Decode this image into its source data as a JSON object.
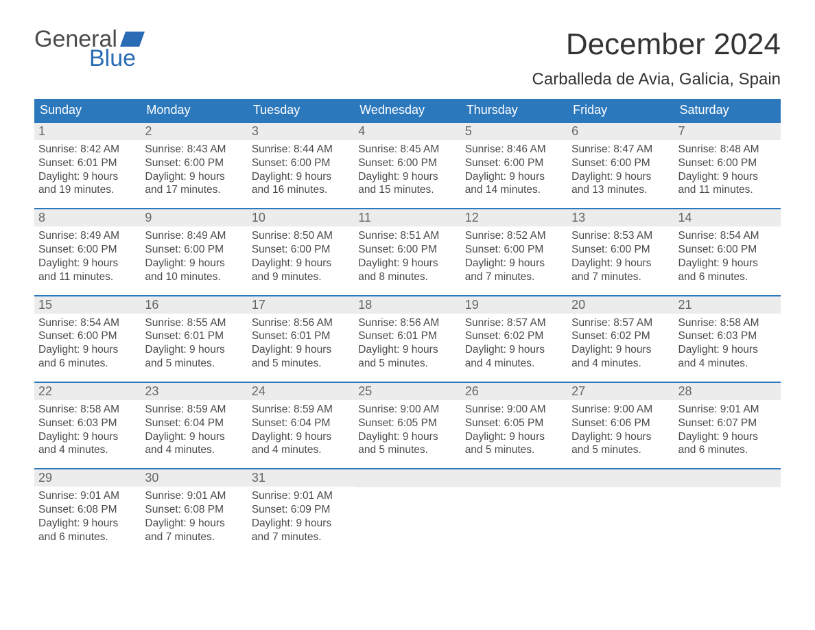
{
  "brand": {
    "part1": "General",
    "part2": "Blue",
    "color1": "#4a4a4a",
    "color2": "#2a6bb5"
  },
  "title": "December 2024",
  "location": "Carballeda de Avia, Galicia, Spain",
  "colors": {
    "header_bg": "#2c78bd",
    "header_text": "#ffffff",
    "daynum_bg": "#ececec",
    "daynum_text": "#666666",
    "body_text": "#4a4a4a",
    "page_bg": "#ffffff",
    "row_border": "#2c78bd"
  },
  "fonts": {
    "title_pt": 44,
    "location_pt": 24,
    "dayheader_pt": 18,
    "daynum_pt": 18,
    "body_pt": 15.5
  },
  "dayHeaders": [
    "Sunday",
    "Monday",
    "Tuesday",
    "Wednesday",
    "Thursday",
    "Friday",
    "Saturday"
  ],
  "weeks": [
    [
      {
        "n": "1",
        "sunrise": "8:42 AM",
        "sunset": "6:01 PM",
        "dlA": "Daylight: 9 hours",
        "dlB": "and 19 minutes."
      },
      {
        "n": "2",
        "sunrise": "8:43 AM",
        "sunset": "6:00 PM",
        "dlA": "Daylight: 9 hours",
        "dlB": "and 17 minutes."
      },
      {
        "n": "3",
        "sunrise": "8:44 AM",
        "sunset": "6:00 PM",
        "dlA": "Daylight: 9 hours",
        "dlB": "and 16 minutes."
      },
      {
        "n": "4",
        "sunrise": "8:45 AM",
        "sunset": "6:00 PM",
        "dlA": "Daylight: 9 hours",
        "dlB": "and 15 minutes."
      },
      {
        "n": "5",
        "sunrise": "8:46 AM",
        "sunset": "6:00 PM",
        "dlA": "Daylight: 9 hours",
        "dlB": "and 14 minutes."
      },
      {
        "n": "6",
        "sunrise": "8:47 AM",
        "sunset": "6:00 PM",
        "dlA": "Daylight: 9 hours",
        "dlB": "and 13 minutes."
      },
      {
        "n": "7",
        "sunrise": "8:48 AM",
        "sunset": "6:00 PM",
        "dlA": "Daylight: 9 hours",
        "dlB": "and 11 minutes."
      }
    ],
    [
      {
        "n": "8",
        "sunrise": "8:49 AM",
        "sunset": "6:00 PM",
        "dlA": "Daylight: 9 hours",
        "dlB": "and 11 minutes."
      },
      {
        "n": "9",
        "sunrise": "8:49 AM",
        "sunset": "6:00 PM",
        "dlA": "Daylight: 9 hours",
        "dlB": "and 10 minutes."
      },
      {
        "n": "10",
        "sunrise": "8:50 AM",
        "sunset": "6:00 PM",
        "dlA": "Daylight: 9 hours",
        "dlB": "and 9 minutes."
      },
      {
        "n": "11",
        "sunrise": "8:51 AM",
        "sunset": "6:00 PM",
        "dlA": "Daylight: 9 hours",
        "dlB": "and 8 minutes."
      },
      {
        "n": "12",
        "sunrise": "8:52 AM",
        "sunset": "6:00 PM",
        "dlA": "Daylight: 9 hours",
        "dlB": "and 7 minutes."
      },
      {
        "n": "13",
        "sunrise": "8:53 AM",
        "sunset": "6:00 PM",
        "dlA": "Daylight: 9 hours",
        "dlB": "and 7 minutes."
      },
      {
        "n": "14",
        "sunrise": "8:54 AM",
        "sunset": "6:00 PM",
        "dlA": "Daylight: 9 hours",
        "dlB": "and 6 minutes."
      }
    ],
    [
      {
        "n": "15",
        "sunrise": "8:54 AM",
        "sunset": "6:00 PM",
        "dlA": "Daylight: 9 hours",
        "dlB": "and 6 minutes."
      },
      {
        "n": "16",
        "sunrise": "8:55 AM",
        "sunset": "6:01 PM",
        "dlA": "Daylight: 9 hours",
        "dlB": "and 5 minutes."
      },
      {
        "n": "17",
        "sunrise": "8:56 AM",
        "sunset": "6:01 PM",
        "dlA": "Daylight: 9 hours",
        "dlB": "and 5 minutes."
      },
      {
        "n": "18",
        "sunrise": "8:56 AM",
        "sunset": "6:01 PM",
        "dlA": "Daylight: 9 hours",
        "dlB": "and 5 minutes."
      },
      {
        "n": "19",
        "sunrise": "8:57 AM",
        "sunset": "6:02 PM",
        "dlA": "Daylight: 9 hours",
        "dlB": "and 4 minutes."
      },
      {
        "n": "20",
        "sunrise": "8:57 AM",
        "sunset": "6:02 PM",
        "dlA": "Daylight: 9 hours",
        "dlB": "and 4 minutes."
      },
      {
        "n": "21",
        "sunrise": "8:58 AM",
        "sunset": "6:03 PM",
        "dlA": "Daylight: 9 hours",
        "dlB": "and 4 minutes."
      }
    ],
    [
      {
        "n": "22",
        "sunrise": "8:58 AM",
        "sunset": "6:03 PM",
        "dlA": "Daylight: 9 hours",
        "dlB": "and 4 minutes."
      },
      {
        "n": "23",
        "sunrise": "8:59 AM",
        "sunset": "6:04 PM",
        "dlA": "Daylight: 9 hours",
        "dlB": "and 4 minutes."
      },
      {
        "n": "24",
        "sunrise": "8:59 AM",
        "sunset": "6:04 PM",
        "dlA": "Daylight: 9 hours",
        "dlB": "and 4 minutes."
      },
      {
        "n": "25",
        "sunrise": "9:00 AM",
        "sunset": "6:05 PM",
        "dlA": "Daylight: 9 hours",
        "dlB": "and 5 minutes."
      },
      {
        "n": "26",
        "sunrise": "9:00 AM",
        "sunset": "6:05 PM",
        "dlA": "Daylight: 9 hours",
        "dlB": "and 5 minutes."
      },
      {
        "n": "27",
        "sunrise": "9:00 AM",
        "sunset": "6:06 PM",
        "dlA": "Daylight: 9 hours",
        "dlB": "and 5 minutes."
      },
      {
        "n": "28",
        "sunrise": "9:01 AM",
        "sunset": "6:07 PM",
        "dlA": "Daylight: 9 hours",
        "dlB": "and 6 minutes."
      }
    ],
    [
      {
        "n": "29",
        "sunrise": "9:01 AM",
        "sunset": "6:08 PM",
        "dlA": "Daylight: 9 hours",
        "dlB": "and 6 minutes."
      },
      {
        "n": "30",
        "sunrise": "9:01 AM",
        "sunset": "6:08 PM",
        "dlA": "Daylight: 9 hours",
        "dlB": "and 7 minutes."
      },
      {
        "n": "31",
        "sunrise": "9:01 AM",
        "sunset": "6:09 PM",
        "dlA": "Daylight: 9 hours",
        "dlB": "and 7 minutes."
      },
      null,
      null,
      null,
      null
    ]
  ]
}
